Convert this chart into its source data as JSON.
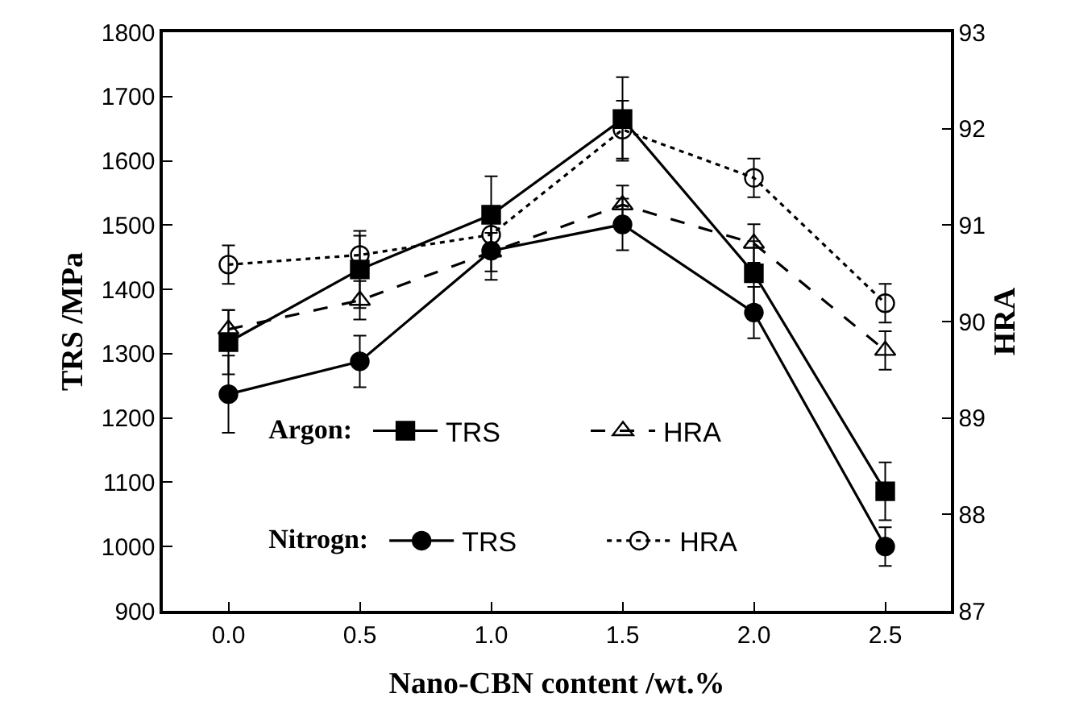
{
  "chart_data": {
    "type": "line",
    "xlabel": "Nano-CBN content /wt.%",
    "ylabel": "TRS /MPa",
    "y2label": "HRA",
    "x": [
      0.0,
      0.5,
      1.0,
      1.5,
      2.0,
      2.5
    ],
    "xlim": [
      -0.25,
      2.75
    ],
    "xticks": [
      {
        "value": 0.0,
        "label": "0.0"
      },
      {
        "value": 0.5,
        "label": "0.5"
      },
      {
        "value": 1.0,
        "label": "1.0"
      },
      {
        "value": 1.5,
        "label": "1.5"
      },
      {
        "value": 2.0,
        "label": "2.0"
      },
      {
        "value": 2.5,
        "label": "2.5"
      }
    ],
    "ylim": [
      900,
      1800
    ],
    "yticks": [
      900,
      1000,
      1100,
      1200,
      1300,
      1400,
      1500,
      1600,
      1700,
      1800
    ],
    "y2lim": [
      87,
      93
    ],
    "y2ticks": [
      87,
      88,
      89,
      90,
      91,
      92,
      93
    ],
    "legend": "bottom",
    "legend_title": [
      "Argon:",
      "Nitrogn:"
    ],
    "series": [
      {
        "name": "TRS",
        "color": "#000000",
        "marker": "square",
        "line_style": "solid",
        "values": [
          1318,
          1431,
          1516,
          1665,
          1425,
          1086
        ],
        "errors": [
          50,
          60,
          60,
          65,
          50,
          45
        ]
      },
      {
        "name": "HRA",
        "axis": "y2",
        "color": "#000000",
        "marker": "triangle",
        "line_style": "dashed",
        "values": [
          89.92,
          90.22,
          90.72,
          91.21,
          90.81,
          89.7
        ],
        "errors": [
          0.2,
          0.2,
          0.2,
          0.2,
          0.2,
          0.2
        ]
      },
      {
        "name": "TRS",
        "color": "#000000",
        "marker": "circle",
        "line_style": "solid",
        "values": [
          1237,
          1288,
          1460,
          1501,
          1364,
          1000
        ],
        "errors": [
          60,
          40,
          45,
          40,
          40,
          30
        ]
      },
      {
        "name": "HRA",
        "axis": "y2",
        "color": "#000000",
        "marker": "circle",
        "line_style": "dotted",
        "values": [
          90.59,
          90.69,
          90.9,
          91.99,
          91.49,
          90.19
        ],
        "errors": [
          0.2,
          0.2,
          0.2,
          0.3,
          0.2,
          0.2
        ]
      }
    ]
  }
}
